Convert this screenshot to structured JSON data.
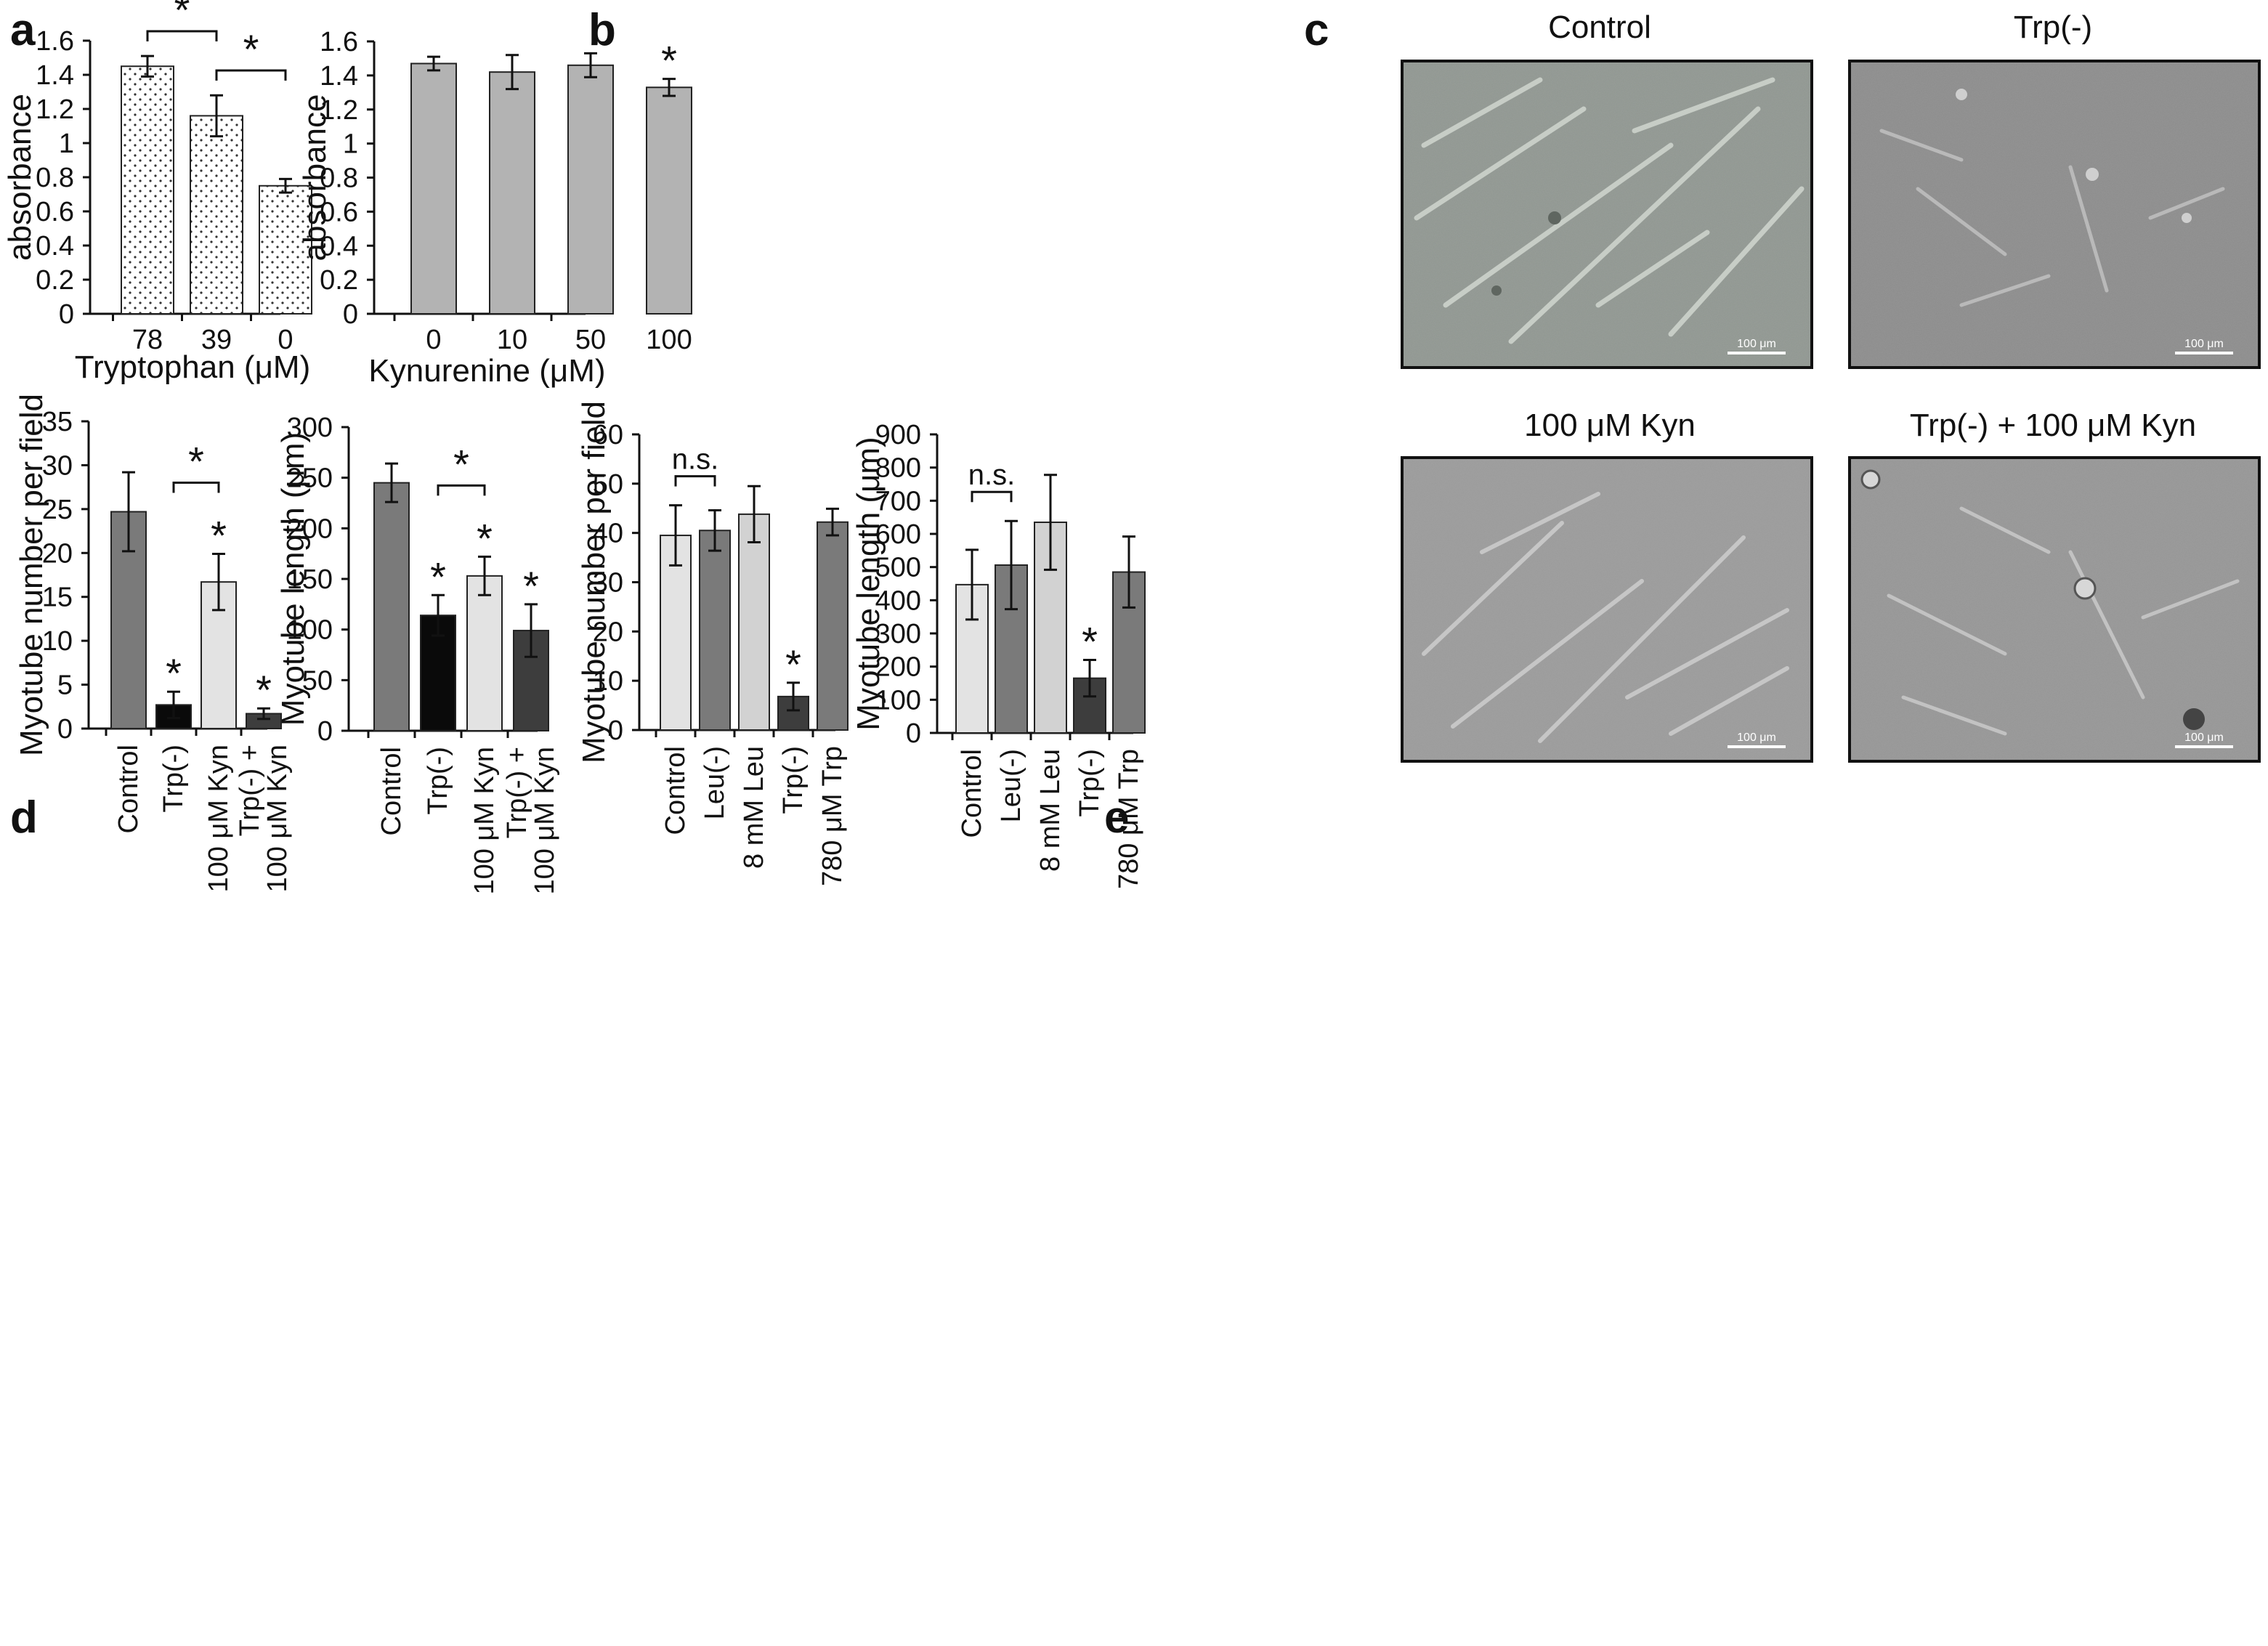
{
  "figure": {
    "panel_letters": [
      "a",
      "b",
      "c",
      "d",
      "e"
    ]
  },
  "colors": {
    "dotted_bar": "#ffffff",
    "grey_bar": "#b3b3b3",
    "black": "#0a0a0a",
    "dark": "#3d3d3d",
    "mid": "#7a7a7a",
    "light": "#e3e3e3",
    "light2": "#d2d2d2",
    "axis": "#111111"
  },
  "micrographs": {
    "titles": [
      "Control",
      "Trp(-)",
      "100 μM Kyn",
      "Trp(-)  + 100 μM Kyn"
    ],
    "scale_bar_label": "100 μm"
  },
  "chart_data": [
    {
      "id": "a",
      "type": "bar",
      "title": "",
      "xlabel": "Tryptophan (μM)",
      "ylabel": "absorbance",
      "ylim": [
        0,
        1.6
      ],
      "yticks": [
        "0",
        "0.2",
        "0.4",
        "0.6",
        "0.8",
        "1",
        "1.2",
        "1.4",
        "1.6"
      ],
      "categories": [
        "78",
        "39",
        "0"
      ],
      "values": [
        1.45,
        1.16,
        0.75
      ],
      "errors": [
        0.06,
        0.12,
        0.04
      ],
      "bar_colors": [
        "dotted",
        "dotted",
        "dotted"
      ],
      "stars": [],
      "brackets": [
        {
          "from": 0,
          "to": 1,
          "label": "*"
        },
        {
          "from": 1,
          "to": 2,
          "label": "*"
        }
      ]
    },
    {
      "id": "b",
      "type": "bar",
      "title": "",
      "xlabel": "Kynurenine (μM)",
      "ylabel": "absorbance",
      "ylim": [
        0,
        1.6
      ],
      "yticks": [
        "0",
        "0.2",
        "0.4",
        "0.6",
        "0.8",
        "1",
        "1.2",
        "1.4",
        "1.6"
      ],
      "categories": [
        "0",
        "10",
        "50",
        "100"
      ],
      "values": [
        1.47,
        1.42,
        1.46,
        1.33
      ],
      "errors": [
        0.04,
        0.1,
        0.07,
        0.05
      ],
      "bar_colors": [
        "grey",
        "grey",
        "grey",
        "grey"
      ],
      "stars": [
        3
      ],
      "brackets": []
    },
    {
      "id": "d1",
      "type": "bar",
      "title": "",
      "xlabel": "",
      "ylabel": "Myotube number per field",
      "ylim": [
        0,
        35
      ],
      "yticks": [
        "0",
        "5",
        "10",
        "15",
        "20",
        "25",
        "30",
        "35"
      ],
      "categories": [
        "Control",
        "Trp(-)",
        "100 μM Kyn",
        "Trp(-) +\n100 μM Kyn"
      ],
      "values": [
        24.7,
        2.7,
        16.7,
        1.7
      ],
      "errors": [
        4.5,
        1.5,
        3.2,
        0.6
      ],
      "bar_colors": [
        "mid",
        "black",
        "light",
        "dark"
      ],
      "stars": [
        1,
        2,
        3
      ],
      "brackets": [
        {
          "from": 1,
          "to": 2,
          "label": "*"
        }
      ]
    },
    {
      "id": "d2",
      "type": "bar",
      "title": "",
      "xlabel": "",
      "ylabel": "Myotube length (μm)",
      "ylim": [
        0,
        300
      ],
      "yticks": [
        "0",
        "50",
        "100",
        "150",
        "200",
        "250",
        "300"
      ],
      "categories": [
        "Control",
        "Trp(-)",
        "100 μM Kyn",
        "Trp(-) +\n100 μM Kyn"
      ],
      "values": [
        245,
        114,
        153,
        99
      ],
      "errors": [
        19,
        20,
        19,
        26
      ],
      "bar_colors": [
        "mid",
        "black",
        "light",
        "dark"
      ],
      "stars": [
        1,
        2,
        3
      ],
      "brackets": [
        {
          "from": 1,
          "to": 2,
          "label": "*"
        }
      ]
    },
    {
      "id": "e1",
      "type": "bar",
      "title": "",
      "xlabel": "",
      "ylabel": "Myotube number per field",
      "ylim": [
        0,
        60
      ],
      "yticks": [
        "0",
        "10",
        "20",
        "30",
        "40",
        "50",
        "60"
      ],
      "categories": [
        "Control",
        "Leu(-)",
        "8 mM Leu",
        "Trp(-)",
        "780 μM Trp"
      ],
      "values": [
        39.5,
        40.5,
        43.8,
        6.8,
        42.2
      ],
      "errors": [
        6.1,
        4.1,
        5.7,
        2.8,
        2.7
      ],
      "bar_colors": [
        "light",
        "mid",
        "light2",
        "dark",
        "mid"
      ],
      "stars": [
        3
      ],
      "brackets": [
        {
          "from": 0,
          "to": 1,
          "label": "n.s."
        }
      ]
    },
    {
      "id": "e2",
      "type": "bar",
      "title": "",
      "xlabel": "",
      "ylabel": "Myotube length (μm)",
      "ylim": [
        0,
        900
      ],
      "yticks": [
        "0",
        "100",
        "200",
        "300",
        "400",
        "500",
        "600",
        "700",
        "800",
        "900"
      ],
      "categories": [
        "Control",
        "Leu(-)",
        "8 mM Leu",
        "Trp(-)",
        "780 μM Trp"
      ],
      "values": [
        447,
        506,
        635,
        165,
        485
      ],
      "errors": [
        105,
        133,
        143,
        55,
        107
      ],
      "bar_colors": [
        "light",
        "mid",
        "light2",
        "dark",
        "mid"
      ],
      "stars": [
        3
      ],
      "brackets": [
        {
          "from": 0,
          "to": 1,
          "label": "n.s."
        }
      ]
    }
  ]
}
